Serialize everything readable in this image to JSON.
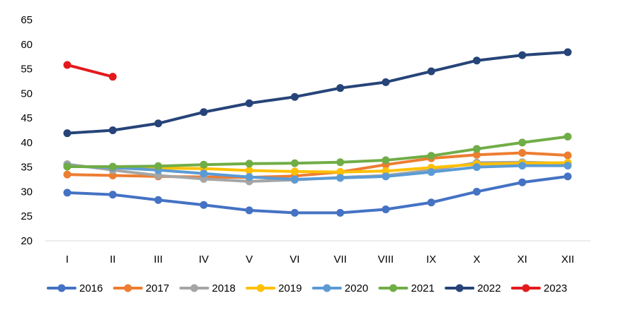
{
  "chart_data": {
    "type": "line",
    "title": "",
    "xlabel": "",
    "ylabel": "",
    "ylim": [
      20,
      65
    ],
    "yticks": [
      20,
      25,
      30,
      35,
      40,
      45,
      50,
      55,
      60,
      65
    ],
    "grid": false,
    "legend_position": "bottom",
    "categories": [
      "I",
      "II",
      "III",
      "IV",
      "V",
      "VI",
      "VII",
      "VIII",
      "IX",
      "X",
      "XI",
      "XII"
    ],
    "series": [
      {
        "name": "2016",
        "color": "#4472C4",
        "values": [
          29.8,
          29.4,
          28.3,
          27.3,
          26.2,
          25.7,
          25.7,
          26.4,
          27.8,
          30.0,
          31.9,
          33.1
        ]
      },
      {
        "name": "2017",
        "color": "#ED7D31",
        "values": [
          33.5,
          33.3,
          33.1,
          33.0,
          32.9,
          33.2,
          34.0,
          35.5,
          36.8,
          37.5,
          37.9,
          37.4
        ]
      },
      {
        "name": "2018",
        "color": "#A5A5A5",
        "values": [
          35.6,
          34.4,
          33.3,
          32.6,
          32.1,
          32.4,
          32.9,
          33.3,
          34.4,
          35.9,
          36.0,
          35.8
        ]
      },
      {
        "name": "2019",
        "color": "#FFC000",
        "values": [
          35.2,
          34.9,
          34.8,
          34.7,
          34.3,
          34.1,
          34.0,
          34.2,
          34.9,
          35.6,
          35.8,
          35.9
        ]
      },
      {
        "name": "2020",
        "color": "#5B9BD5",
        "values": [
          35.2,
          34.9,
          34.4,
          33.7,
          33.0,
          32.5,
          32.8,
          33.1,
          34.0,
          35.0,
          35.3,
          35.3
        ]
      },
      {
        "name": "2021",
        "color": "#70AD47",
        "values": [
          35.1,
          35.1,
          35.2,
          35.5,
          35.7,
          35.8,
          36.0,
          36.4,
          37.3,
          38.7,
          40.0,
          41.2
        ]
      },
      {
        "name": "2022",
        "color": "#264478",
        "values": [
          41.9,
          42.5,
          43.9,
          46.2,
          48.0,
          49.3,
          51.1,
          52.3,
          54.5,
          56.7,
          57.8,
          58.4
        ]
      },
      {
        "name": "2023",
        "color": "#E31A1C",
        "values": [
          55.8,
          53.4,
          null,
          null,
          null,
          null,
          null,
          null,
          null,
          null,
          null,
          null
        ]
      }
    ]
  }
}
